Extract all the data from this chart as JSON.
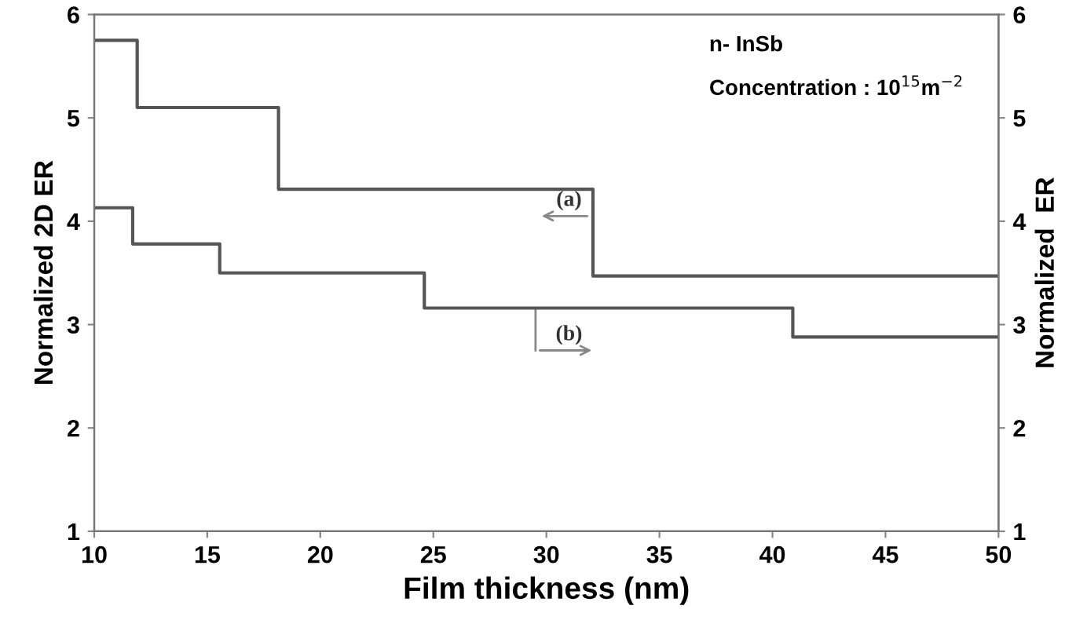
{
  "chart_data": {
    "type": "step",
    "xlabel": "Film thickness (nm)",
    "ylabel": "Normalized 2D ER",
    "y2label": "Normalized  ER",
    "xlim": [
      10,
      50
    ],
    "xticks": [
      10,
      15,
      20,
      25,
      30,
      35,
      40,
      45,
      50
    ],
    "ylim": [
      1,
      6
    ],
    "yticks": [
      1,
      2,
      3,
      4,
      5,
      6
    ],
    "y2lim": [
      1,
      6
    ],
    "y2ticks": [
      1,
      2,
      3,
      4,
      5,
      6
    ],
    "grid": false,
    "legend": false,
    "marker": "none",
    "line_style": "solid",
    "series": [
      {
        "color": "#555555",
        "x": [
          10,
          11.9,
          18.15,
          32.06,
          50
        ],
        "values": [
          5.75,
          5.1,
          4.31,
          3.47,
          3.47
        ]
      },
      {
        "color": "#555555",
        "axis": "y2",
        "x": [
          10,
          11.7,
          15.55,
          24.6,
          40.9,
          50
        ],
        "values": [
          4.13,
          3.78,
          3.5,
          3.16,
          2.88,
          2.88
        ]
      }
    ],
    "annotations": [
      "(a)",
      "(b)",
      "n- InSb",
      "Concentration : 10$^{15}$m$^{−2}$"
    ]
  }
}
